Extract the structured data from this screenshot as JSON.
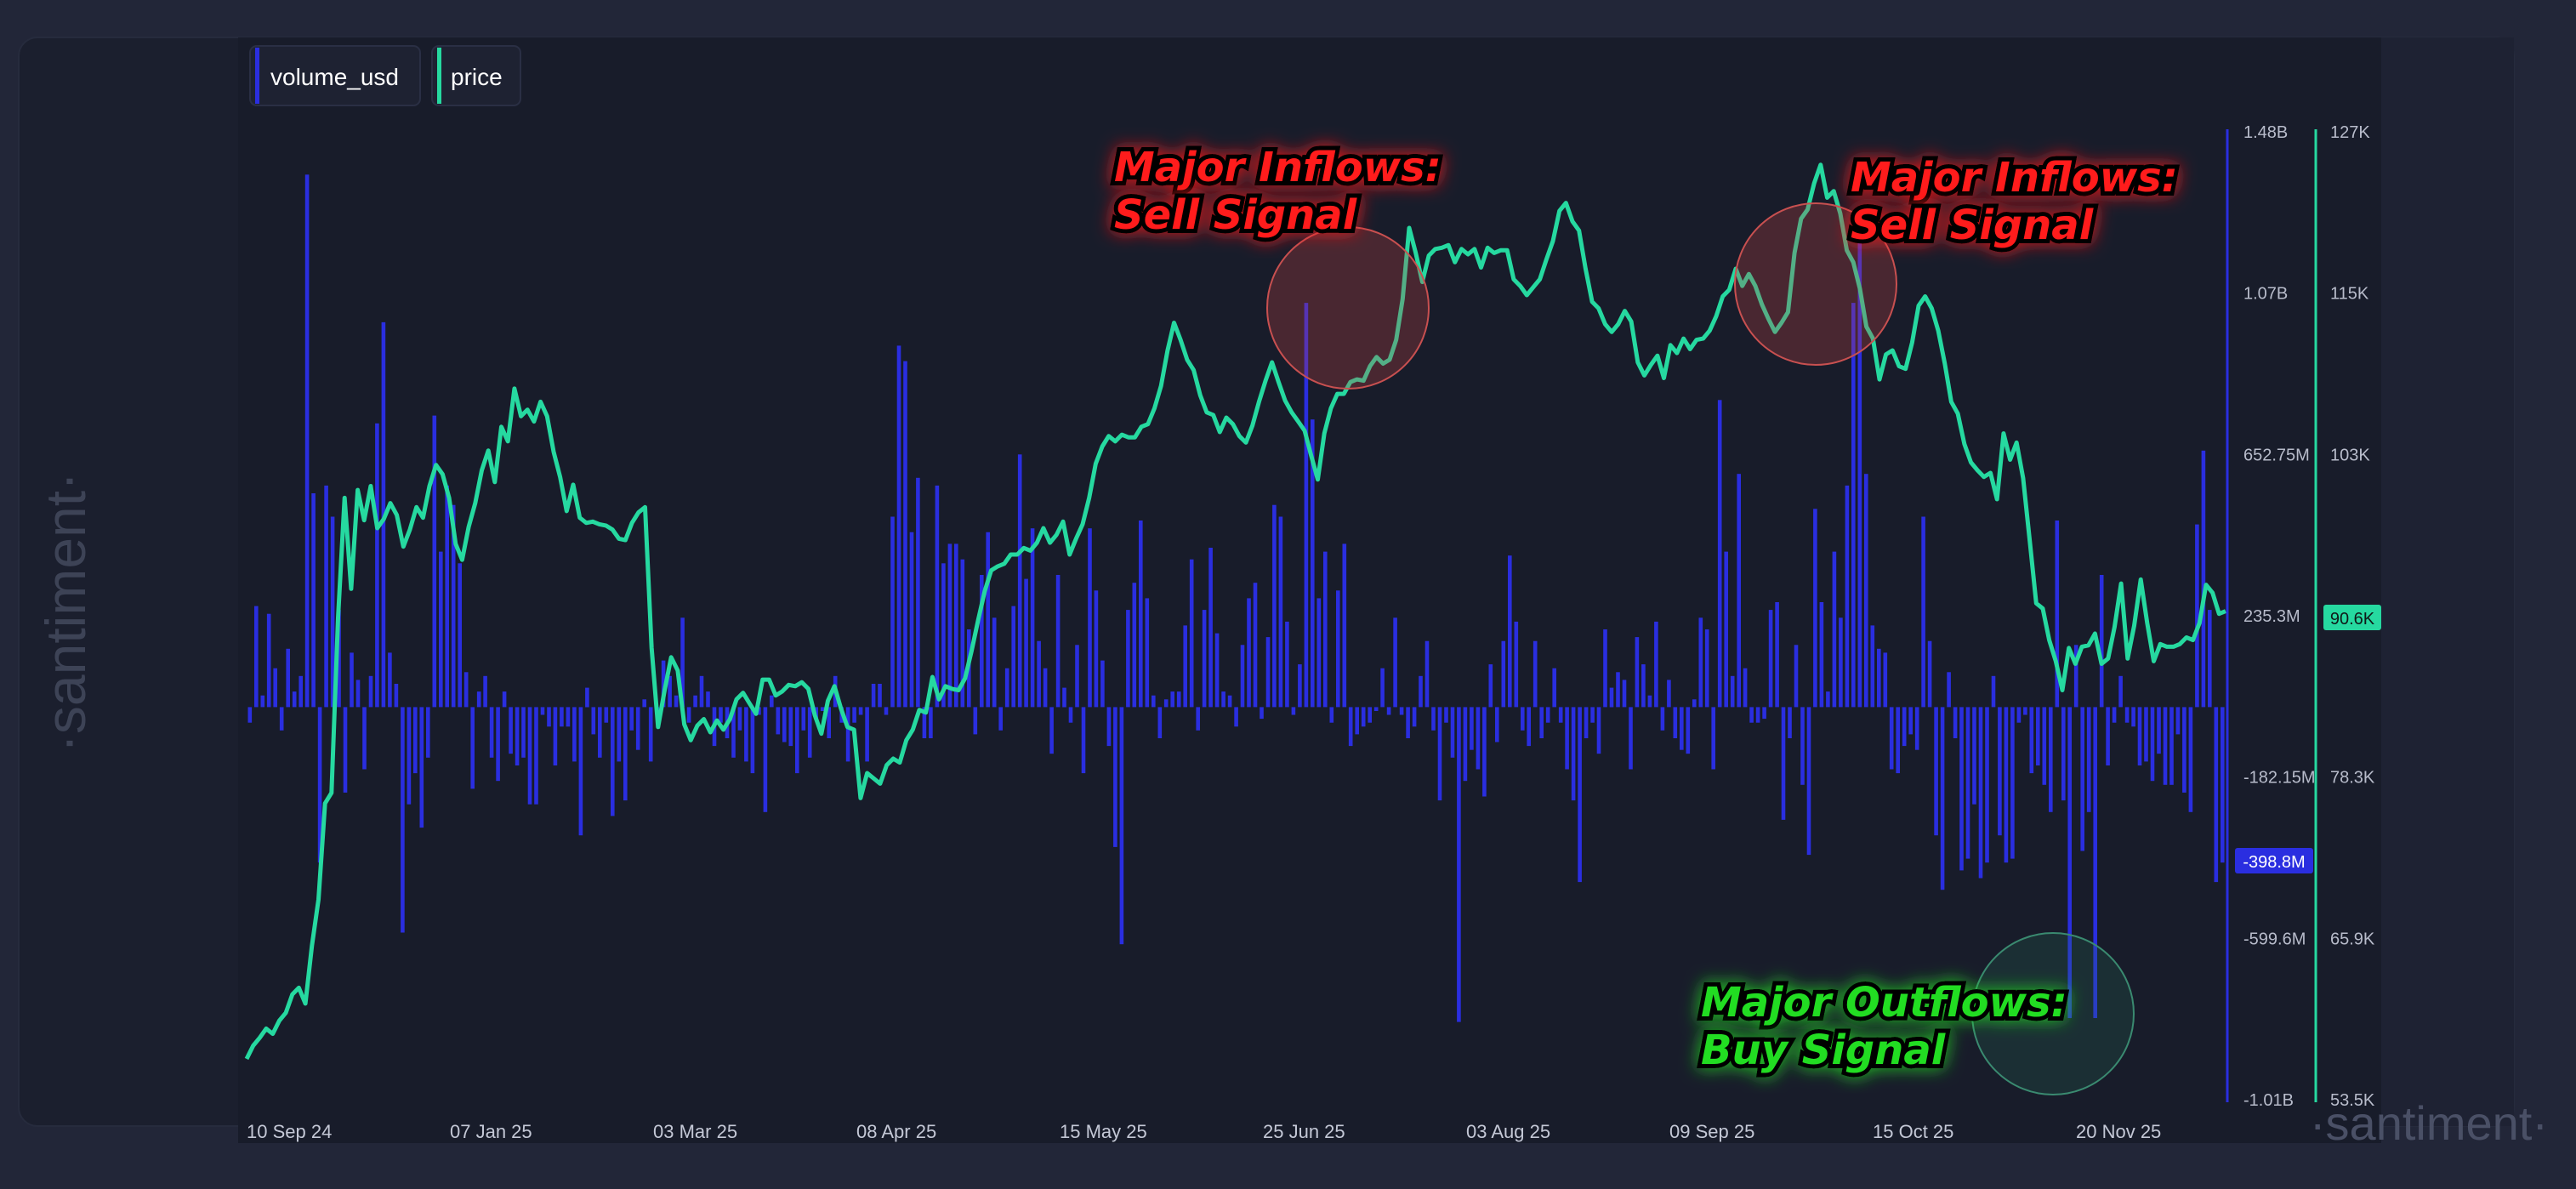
{
  "legend": [
    {
      "label": "volume_usd",
      "color": "#2a2ee0"
    },
    {
      "label": "price",
      "color": "#26d9a0"
    }
  ],
  "watermark": {
    "side": "·santiment·",
    "corner": "·santiment·"
  },
  "annotations": [
    {
      "lines": [
        "Major Inflows:",
        "Sell Signal"
      ],
      "color": "#ff1a1a"
    },
    {
      "lines": [
        "Major Inflows:",
        "Sell Signal"
      ],
      "color": "#ff1a1a"
    },
    {
      "lines": [
        "Major Outflows:",
        "Buy Signal"
      ],
      "color": "#22dd22"
    }
  ],
  "colors": {
    "background": "#1b1f2e",
    "volume": "#2a2ee0",
    "price": "#26d9a0",
    "axis_left": "#2a2ee0",
    "axis_right": "#26d9a0"
  },
  "chart_data": {
    "type": "bar+line",
    "grid": false,
    "legend_position": "top-left",
    "x_labels": [
      "10 Sep 24",
      "07 Jan 25",
      "03 Mar 25",
      "08 Apr 25",
      "15 May 25",
      "25 Jun 25",
      "03 Aug 25",
      "09 Sep 25",
      "15 Oct 25",
      "20 Nov 25"
    ],
    "volume_axis": {
      "ticks": [
        "1.48B",
        "1.07B",
        "652.75M",
        "235.3M",
        "-182.15M",
        "-599.6M",
        "-1.01B"
      ],
      "ylim": [
        -1010,
        1480
      ],
      "unit": "M USD"
    },
    "price_axis": {
      "ticks": [
        "127K",
        "115K",
        "103K",
        "90.6K",
        "78.3K",
        "65.9K",
        "53.5K"
      ],
      "ylim": [
        53.5,
        127
      ],
      "unit": "K USD"
    },
    "current_values": {
      "volume_usd": "-398.8M",
      "price": "90.6K"
    },
    "series": [
      {
        "name": "volume_usd",
        "type": "bar",
        "values": [
          -40,
          260,
          30,
          240,
          100,
          -60,
          150,
          40,
          80,
          1370,
          550,
          -400,
          570,
          490,
          250,
          -220,
          140,
          70,
          -160,
          80,
          730,
          990,
          140,
          60,
          -580,
          -250,
          -170,
          -310,
          -130,
          750,
          400,
          570,
          520,
          370,
          90,
          -210,
          40,
          80,
          -130,
          -190,
          40,
          -120,
          -150,
          -130,
          -250,
          -250,
          -20,
          -50,
          -150,
          -50,
          -50,
          -140,
          -330,
          50,
          -70,
          -130,
          -40,
          -280,
          -140,
          -240,
          -60,
          -110,
          20,
          -140,
          -20,
          120,
          80,
          30,
          230,
          -40,
          30,
          80,
          40,
          -100,
          -40,
          -80,
          -130,
          -60,
          -140,
          -170,
          -20,
          -270,
          30,
          -70,
          -90,
          -100,
          -170,
          -60,
          -130,
          -30,
          -10,
          -80,
          80,
          -40,
          -140,
          -40,
          -20,
          -140,
          60,
          60,
          -20,
          490,
          930,
          890,
          450,
          590,
          -80,
          -80,
          570,
          370,
          420,
          420,
          380,
          200,
          -70,
          340,
          450,
          230,
          -60,
          100,
          260,
          650,
          330,
          460,
          170,
          100,
          -120,
          340,
          50,
          -40,
          160,
          -170,
          460,
          300,
          120,
          -100,
          -360,
          -610,
          250,
          320,
          480,
          280,
          30,
          -80,
          20,
          40,
          40,
          210,
          380,
          -60,
          250,
          410,
          190,
          40,
          30,
          -50,
          160,
          280,
          320,
          -30,
          180,
          520,
          490,
          220,
          -20,
          110,
          1040,
          740,
          280,
          400,
          -40,
          300,
          420,
          -100,
          -70,
          -50,
          -40,
          -10,
          100,
          -20,
          230,
          -20,
          -80,
          -50,
          80,
          170,
          -60,
          -240,
          -40,
          -130,
          -810,
          -190,
          -110,
          -160,
          -230,
          110,
          -90,
          170,
          390,
          220,
          -60,
          -100,
          170,
          -80,
          -40,
          100,
          -40,
          -160,
          -240,
          -450,
          -80,
          -40,
          -120,
          200,
          50,
          90,
          70,
          -160,
          180,
          110,
          30,
          220,
          -60,
          70,
          -80,
          -110,
          -120,
          20,
          230,
          200,
          -160,
          790,
          400,
          80,
          600,
          100,
          -40,
          -40,
          -30,
          250,
          270,
          -290,
          -80,
          160,
          -200,
          -380,
          510,
          270,
          40,
          400,
          230,
          570,
          1040,
          1200,
          600,
          210,
          150,
          140,
          -160,
          -170,
          -100,
          -70,
          -110,
          490,
          170,
          -330,
          -470,
          90,
          -80,
          -420,
          -390,
          -250,
          -440,
          -400,
          80,
          -330,
          -400,
          -390,
          -40,
          -20,
          -170,
          -150,
          -200,
          -270,
          480,
          -240,
          -800,
          160,
          -370,
          -270,
          -800,
          340,
          -150,
          -40,
          80,
          -40,
          -50,
          -150,
          -140,
          -190,
          -120,
          -200,
          -200,
          -70,
          -220,
          -270,
          470,
          660,
          250,
          -450,
          -400
        ]
      },
      {
        "name": "price",
        "type": "line",
        "values": [
          56.6,
          57.6,
          58.2,
          58.9,
          58.5,
          59.5,
          60.1,
          61.5,
          62.0,
          60.8,
          65.2,
          68.7,
          76.0,
          76.8,
          90.1,
          99.2,
          92.3,
          99.8,
          97.5,
          100.1,
          96.9,
          97.6,
          98.8,
          97.9,
          95.5,
          96.8,
          98.5,
          97.7,
          100.1,
          101.7,
          101.0,
          99.2,
          95.7,
          94.5,
          97.0,
          98.8,
          101.3,
          102.8,
          100.4,
          104.6,
          103.5,
          107.5,
          105.4,
          105.9,
          105.0,
          106.5,
          105.4,
          102.7,
          100.8,
          98.2,
          100.2,
          97.7,
          97.3,
          97.4,
          97.2,
          97.1,
          96.8,
          96.1,
          96.0,
          97.3,
          98.1,
          98.5,
          87.8,
          81.8,
          84.6,
          87.1,
          86.1,
          82.0,
          80.8,
          81.9,
          82.4,
          81.4,
          82.3,
          81.6,
          82.4,
          83.9,
          84.4,
          83.6,
          82.8,
          85.4,
          85.4,
          84.2,
          84.5,
          85.0,
          84.9,
          85.2,
          84.7,
          82.7,
          81.3,
          83.8,
          84.9,
          83.2,
          81.8,
          81.6,
          76.4,
          78.3,
          77.9,
          77.5,
          78.9,
          79.4,
          79.1,
          80.8,
          81.6,
          83.1,
          82.9,
          85.6,
          83.9,
          84.9,
          84.7,
          84.6,
          85.5,
          87.6,
          89.9,
          92.1,
          93.7,
          94.0,
          94.2,
          94.9,
          94.9,
          95.4,
          95.2,
          95.8,
          96.9,
          95.8,
          96.4,
          97.4,
          94.9,
          96.1,
          97.2,
          99.2,
          101.8,
          103.1,
          103.9,
          103.5,
          104.0,
          103.8,
          103.8,
          104.6,
          104.8,
          106.0,
          107.7,
          110.4,
          112.5,
          111.2,
          109.7,
          108.9,
          107.0,
          105.7,
          105.5,
          104.2,
          105.3,
          104.8,
          103.9,
          103.4,
          104.7,
          106.5,
          108.1,
          109.5,
          108.0,
          106.6,
          105.7,
          105.0,
          104.3,
          102.4,
          100.6,
          104.1,
          106.0,
          107.1,
          107.1,
          108.0,
          108.2,
          108.1,
          109.2,
          109.9,
          109.4,
          109.7,
          111.2,
          114.3,
          119.7,
          117.8,
          115.6,
          117.6,
          118.1,
          118.2,
          118.4,
          117.1,
          118.1,
          117.7,
          118.1,
          116.7,
          118.2,
          117.8,
          118.0,
          118.0,
          115.8,
          115.3,
          114.6,
          115.2,
          115.8,
          117.3,
          118.7,
          121.0,
          121.6,
          120.2,
          119.5,
          116.6,
          114.1,
          113.6,
          112.4,
          111.8,
          112.4,
          113.4,
          112.6,
          109.5,
          108.5,
          109.3,
          110.0,
          108.3,
          110.8,
          110.2,
          111.3,
          110.5,
          111.2,
          111.3,
          111.9,
          113.0,
          114.5,
          115.0,
          116.6,
          115.3,
          116.2,
          115.3,
          113.9,
          112.8,
          111.8,
          112.5,
          113.3,
          117.8,
          120.4,
          121.1,
          123.1,
          124.5,
          122.0,
          122.5,
          120.8,
          118.0,
          117.1,
          115.1,
          112.2,
          111.3,
          108.2,
          110.1,
          110.4,
          109.2,
          109.0,
          111.0,
          113.8,
          114.5,
          113.6,
          111.9,
          109.4,
          106.5,
          105.6,
          103.3,
          101.9,
          101.3,
          100.8,
          101.1,
          99.1,
          104.1,
          102.1,
          103.4,
          100.7,
          96.0,
          91.2,
          90.8,
          88.4,
          86.8,
          84.6,
          87.8,
          86.6,
          87.9,
          88.0,
          88.9,
          86.6,
          87.0,
          89.4,
          92.7,
          87.0,
          89.5,
          93.0,
          89.7,
          86.8,
          88.1,
          87.9,
          87.9,
          88.1,
          88.6,
          88.4,
          89.7,
          92.6,
          92.0,
          90.4,
          90.6
        ]
      }
    ]
  }
}
